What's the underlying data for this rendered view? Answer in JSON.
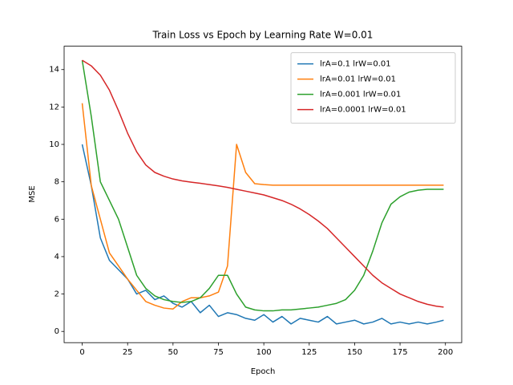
{
  "chart_data": {
    "type": "line",
    "title": "Train Loss vs Epoch by Learning Rate W=0.01",
    "x_label": "Epoch",
    "y_label": "MSE",
    "x": [
      0,
      5,
      10,
      15,
      20,
      25,
      30,
      35,
      40,
      45,
      50,
      55,
      60,
      65,
      70,
      75,
      80,
      85,
      90,
      95,
      100,
      105,
      110,
      115,
      120,
      125,
      130,
      135,
      140,
      145,
      150,
      155,
      160,
      165,
      170,
      175,
      180,
      185,
      190,
      195,
      199
    ],
    "series": [
      {
        "name": "lrA=0.1 lrW=0.01",
        "color": "#1f77b4",
        "values": [
          10,
          7.8,
          5.0,
          3.8,
          3.3,
          2.8,
          2.0,
          2.2,
          1.7,
          1.9,
          1.5,
          1.3,
          1.6,
          1.0,
          1.4,
          0.8,
          1.0,
          0.9,
          0.7,
          0.6,
          0.9,
          0.5,
          0.8,
          0.4,
          0.7,
          0.6,
          0.5,
          0.8,
          0.4,
          0.5,
          0.6,
          0.4,
          0.5,
          0.7,
          0.4,
          0.5,
          0.4,
          0.5,
          0.4,
          0.5,
          0.6
        ]
      },
      {
        "name": "lrA=0.01 lrW=0.01",
        "color": "#ff7f0e",
        "values": [
          12.2,
          7.8,
          6.0,
          4.2,
          3.5,
          2.8,
          2.2,
          1.6,
          1.4,
          1.25,
          1.2,
          1.6,
          1.8,
          1.8,
          1.9,
          2.1,
          3.5,
          10.0,
          8.5,
          7.9,
          7.85,
          7.82,
          7.82,
          7.82,
          7.82,
          7.82,
          7.82,
          7.82,
          7.82,
          7.82,
          7.82,
          7.82,
          7.82,
          7.82,
          7.82,
          7.82,
          7.82,
          7.82,
          7.82,
          7.82,
          7.82
        ]
      },
      {
        "name": "lrA=0.001 lrW=0.01",
        "color": "#2ca02c",
        "values": [
          14.5,
          11.5,
          8.0,
          7.0,
          6.0,
          4.5,
          3.0,
          2.3,
          1.9,
          1.7,
          1.6,
          1.55,
          1.6,
          1.8,
          2.3,
          3.0,
          3.0,
          2.0,
          1.3,
          1.15,
          1.1,
          1.1,
          1.15,
          1.15,
          1.2,
          1.25,
          1.3,
          1.4,
          1.5,
          1.7,
          2.2,
          3.0,
          4.3,
          5.8,
          6.8,
          7.2,
          7.45,
          7.55,
          7.6,
          7.6,
          7.6
        ]
      },
      {
        "name": "lrA=0.0001 lrW=0.01",
        "color": "#d62728",
        "values": [
          14.5,
          14.2,
          13.7,
          12.9,
          11.8,
          10.6,
          9.6,
          8.9,
          8.5,
          8.3,
          8.15,
          8.05,
          7.98,
          7.92,
          7.85,
          7.78,
          7.7,
          7.6,
          7.5,
          7.4,
          7.3,
          7.15,
          7.0,
          6.8,
          6.55,
          6.25,
          5.9,
          5.5,
          5.0,
          4.5,
          4.0,
          3.5,
          3.0,
          2.6,
          2.3,
          2.0,
          1.8,
          1.6,
          1.45,
          1.35,
          1.3
        ]
      }
    ],
    "xlim": [
      -9.95,
      208.95
    ],
    "ylim": [
      -0.6,
      15.25
    ],
    "xticks": [
      0,
      25,
      50,
      75,
      100,
      125,
      150,
      175,
      200
    ],
    "yticks": [
      0,
      2,
      4,
      6,
      8,
      10,
      12,
      14
    ],
    "legend": "upper right"
  }
}
